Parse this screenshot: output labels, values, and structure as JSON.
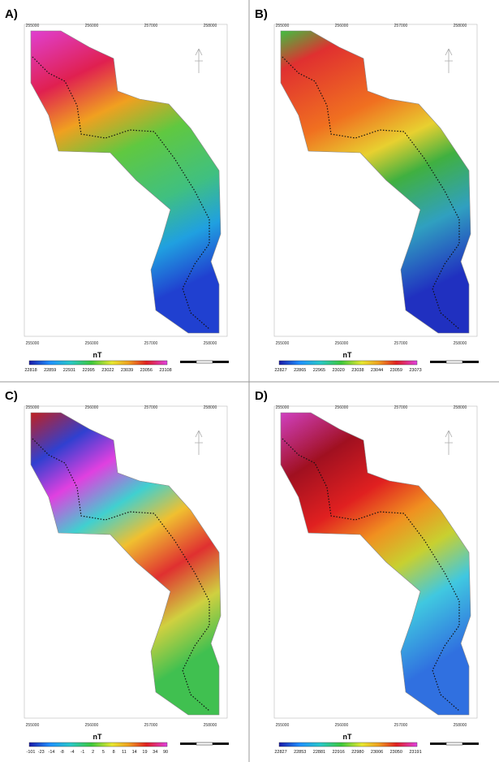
{
  "panels": [
    {
      "label": "A)",
      "unit": "nT",
      "x_labels": [
        "255000",
        "256000",
        "257000",
        "258000"
      ],
      "colorbar_labels": [
        "22818",
        "22859",
        "22931",
        "22995",
        "23022",
        "23039",
        "23056",
        "23108"
      ]
    },
    {
      "label": "B)",
      "unit": "nT",
      "x_labels": [
        "255000",
        "256000",
        "257000",
        "258000"
      ],
      "colorbar_labels": [
        "22827",
        "22865",
        "22965",
        "23020",
        "23038",
        "23044",
        "23059",
        "23073"
      ]
    },
    {
      "label": "C)",
      "unit": "nT",
      "x_labels": [
        "255000",
        "256000",
        "257000",
        "258000"
      ],
      "colorbar_labels": [
        "-101",
        "-23",
        "-14",
        "-8",
        "-4",
        "-1",
        "2",
        "5",
        "8",
        "11",
        "14",
        "19",
        "34",
        "90"
      ]
    },
    {
      "label": "D)",
      "unit": "nT",
      "x_labels": [
        "255000",
        "256000",
        "257000",
        "258000"
      ],
      "colorbar_labels": [
        "22827",
        "22853",
        "22881",
        "22916",
        "22980",
        "23006",
        "23050",
        "23191"
      ]
    }
  ]
}
